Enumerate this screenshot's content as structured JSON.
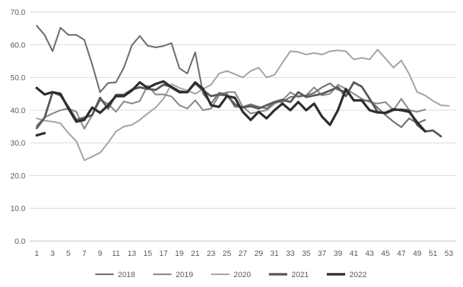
{
  "chart_data": {
    "type": "line",
    "title": "",
    "xlabel": "",
    "ylabel": "",
    "x_ticks": [
      "1",
      "3",
      "5",
      "7",
      "9",
      "11",
      "13",
      "15",
      "17",
      "19",
      "21",
      "23",
      "25",
      "27",
      "29",
      "31",
      "33",
      "35",
      "37",
      "39",
      "41",
      "43",
      "45",
      "47",
      "49",
      "51",
      "53"
    ],
    "y_ticks": [
      "0.0",
      "10.0",
      "20.0",
      "30.0",
      "40.0",
      "50.0",
      "60.0",
      "70.0"
    ],
    "xlim": [
      1,
      53
    ],
    "ylim": [
      0,
      70
    ],
    "grid": "horizontal",
    "legend": "bottom",
    "series": [
      {
        "name": "2018",
        "color": "#6e6e6e",
        "width": 2.2,
        "x": [
          1,
          2,
          3,
          4,
          5,
          6,
          7,
          8,
          9,
          10,
          11,
          12,
          13,
          14,
          15,
          16,
          17,
          18,
          19,
          20,
          21,
          22,
          23,
          24,
          25,
          26,
          27,
          28,
          29,
          30,
          31,
          32,
          33,
          34,
          35,
          36,
          37,
          38,
          39,
          40,
          41,
          42,
          43,
          44,
          45,
          46,
          47,
          48,
          49,
          50
        ],
        "values": [
          65.8,
          63.0,
          58.0,
          65.2,
          63.0,
          63.0,
          61.5,
          54.0,
          45.5,
          48.3,
          48.5,
          53.0,
          59.8,
          62.7,
          59.7,
          59.2,
          59.6,
          60.5,
          52.8,
          51.2,
          57.7,
          45.0,
          42.0,
          45.3,
          45.0,
          41.0,
          41.0,
          41.8,
          41.0,
          40.5,
          42.5,
          42.5,
          44.0,
          44.3,
          44.5,
          45.3,
          47.0,
          48.2,
          46.2,
          45.8,
          43.2,
          42.8,
          43.0,
          40.8,
          38.5,
          36.5,
          34.8,
          37.5,
          36.0,
          37.0
        ]
      },
      {
        "name": "2019",
        "color": "#8a8a8a",
        "width": 2.2,
        "x": [
          1,
          2,
          3,
          4,
          5,
          6,
          7,
          8,
          9,
          10,
          11,
          12,
          13,
          14,
          15,
          16,
          17,
          18,
          19,
          20,
          21,
          22,
          23,
          24,
          25,
          26,
          27,
          28,
          29,
          30,
          31,
          32,
          33,
          34,
          35,
          36,
          37,
          38,
          39,
          40,
          41,
          42,
          43,
          44,
          45,
          46,
          47,
          48,
          49,
          50
        ],
        "values": [
          35.3,
          37.8,
          39.0,
          40.0,
          40.5,
          39.5,
          34.3,
          38.5,
          43.0,
          42.0,
          39.5,
          42.7,
          42.0,
          42.8,
          47.5,
          44.8,
          44.8,
          44.2,
          41.5,
          40.5,
          43.0,
          40.0,
          40.5,
          44.5,
          45.5,
          45.5,
          41.0,
          39.0,
          39.5,
          40.0,
          42.0,
          43.0,
          45.5,
          44.0,
          44.5,
          47.0,
          44.5,
          45.0,
          47.8,
          46.5,
          45.0,
          43.5,
          42.5,
          42.0,
          42.5,
          40.0,
          43.5,
          40.0,
          39.5,
          40.2
        ]
      },
      {
        "name": "2020",
        "color": "#a6a6a6",
        "width": 2.2,
        "x": [
          1,
          2,
          3,
          4,
          5,
          6,
          7,
          8,
          9,
          10,
          11,
          12,
          13,
          14,
          15,
          16,
          17,
          18,
          19,
          20,
          21,
          22,
          23,
          24,
          25,
          26,
          27,
          28,
          29,
          30,
          31,
          32,
          33,
          34,
          35,
          36,
          37,
          38,
          39,
          40,
          41,
          42,
          43,
          44,
          45,
          46,
          47,
          48,
          49,
          50,
          51,
          52,
          53
        ],
        "values": [
          37.5,
          36.8,
          36.5,
          36.0,
          33.0,
          30.5,
          24.7,
          25.8,
          27.0,
          30.0,
          33.5,
          35.0,
          35.5,
          37.0,
          39.0,
          40.8,
          43.5,
          48.0,
          46.8,
          46.0,
          45.0,
          46.5,
          47.8,
          51.2,
          52.0,
          51.0,
          50.0,
          52.0,
          53.0,
          50.0,
          50.8,
          54.5,
          58.0,
          57.8,
          57.0,
          57.5,
          57.0,
          58.0,
          58.3,
          58.0,
          55.5,
          56.0,
          55.5,
          58.5,
          55.8,
          53.0,
          55.2,
          51.0,
          45.5,
          44.5,
          42.8,
          41.5,
          41.3
        ]
      },
      {
        "name": "2021",
        "color": "#5a5a5a",
        "width": 3,
        "x": [
          1,
          2,
          3,
          4,
          5,
          6,
          7,
          8,
          9,
          10,
          11,
          12,
          13,
          14,
          15,
          16,
          17,
          18,
          19,
          20,
          21,
          22,
          23,
          24,
          25,
          26,
          27,
          28,
          29,
          30,
          31,
          32,
          33,
          34,
          35,
          36,
          37,
          38,
          39,
          40,
          41,
          42,
          43,
          44,
          45,
          46,
          47,
          48,
          49,
          50,
          51,
          52
        ],
        "values": [
          34.5,
          37.7,
          45.5,
          44.5,
          41.0,
          37.0,
          37.7,
          38.5,
          43.8,
          40.5,
          44.7,
          44.7,
          46.3,
          47.0,
          46.5,
          46.2,
          47.8,
          47.2,
          45.8,
          45.5,
          48.2,
          46.0,
          44.3,
          44.8,
          44.5,
          41.8,
          40.8,
          41.2,
          40.5,
          41.5,
          42.5,
          43.2,
          42.5,
          45.5,
          44.0,
          44.5,
          45.0,
          46.0,
          47.0,
          44.3,
          48.5,
          47.2,
          43.5,
          39.5,
          39.0,
          40.0,
          40.2,
          40.0,
          35.5,
          33.5,
          33.8,
          32.0
        ]
      },
      {
        "name": "2022",
        "color": "#2e2e2e",
        "width": 3.4,
        "x": [
          1,
          2
        ],
        "values": [
          32.3,
          33.0
        ]
      },
      {
        "name": "",
        "color": "#2e2e2e",
        "width": 3.4,
        "x": [
          1,
          2,
          3,
          4,
          5,
          6,
          7,
          8,
          9,
          10,
          11,
          12,
          13,
          14,
          15,
          16,
          17,
          18,
          19,
          20,
          21,
          22,
          23,
          24,
          25,
          26,
          27,
          28,
          29,
          30,
          31,
          32,
          33,
          34,
          35,
          36,
          37,
          38,
          39,
          40,
          41,
          42,
          43,
          44,
          45,
          46,
          47,
          48,
          49,
          50
        ],
        "values": [
          46.8,
          44.8,
          45.5,
          45.0,
          40.5,
          36.5,
          37.0,
          40.8,
          39.2,
          41.5,
          44.3,
          44.3,
          46.0,
          48.5,
          46.8,
          48.0,
          48.8,
          47.0,
          45.5,
          45.5,
          48.5,
          46.5,
          41.5,
          41.0,
          44.3,
          43.8,
          39.5,
          37.0,
          39.5,
          37.5,
          40.0,
          42.0,
          40.0,
          42.5,
          40.0,
          42.0,
          38.0,
          35.5,
          40.0,
          46.5,
          43.0,
          43.0,
          40.0,
          39.3,
          39.2,
          40.3,
          40.0,
          39.5,
          36.3,
          33.5
        ]
      }
    ],
    "legend_items": [
      {
        "name": "2018",
        "color": "#6e6e6e"
      },
      {
        "name": "2019",
        "color": "#8a8a8a"
      },
      {
        "name": "2020",
        "color": "#a6a6a6"
      },
      {
        "name": "2021",
        "color": "#5a5a5a"
      },
      {
        "name": "2022",
        "color": "#2e2e2e"
      }
    ]
  }
}
